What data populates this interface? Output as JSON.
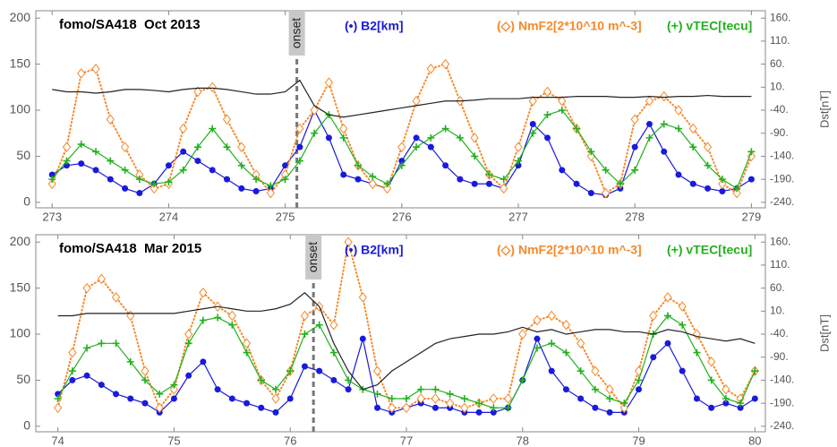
{
  "chart_data": [
    {
      "type": "line",
      "title": "fomo/SA418  Oct 2013",
      "xlim": [
        272.86,
        279.12
      ],
      "xticks": [
        273,
        274,
        275,
        276,
        277,
        278,
        279
      ],
      "ylim": [
        -6,
        208
      ],
      "yticks": [
        0,
        50,
        100,
        150,
        200
      ],
      "y2lim": [
        -252,
        176
      ],
      "y2ticks": [
        {
          "value": 160,
          "label": "160."
        },
        {
          "value": 110,
          "label": "110."
        },
        {
          "value": 60,
          "label": "60."
        },
        {
          "value": 10,
          "label": "10."
        },
        {
          "value": -40,
          "label": "-40."
        },
        {
          "value": -90,
          "label": "-90."
        },
        {
          "value": -140,
          "label": "-140."
        },
        {
          "value": -190,
          "label": "-190."
        },
        {
          "value": -240,
          "label": "-240."
        }
      ],
      "y2label": "Dst[nT]",
      "annotations": [
        {
          "text": "onset",
          "x": 275.1
        }
      ],
      "x": [
        273,
        273.125,
        273.25,
        273.375,
        273.5,
        273.625,
        273.75,
        273.875,
        274,
        274.125,
        274.25,
        274.375,
        274.5,
        274.625,
        274.75,
        274.875,
        275,
        275.125,
        275.25,
        275.375,
        275.5,
        275.625,
        275.75,
        275.875,
        276,
        276.125,
        276.25,
        276.375,
        276.5,
        276.625,
        276.75,
        276.875,
        277,
        277.125,
        277.25,
        277.375,
        277.5,
        277.625,
        277.75,
        277.875,
        278,
        278.125,
        278.25,
        278.375,
        278.5,
        278.625,
        278.75,
        278.875,
        279
      ],
      "series": [
        {
          "name": "(•) B2[km]",
          "color": "#1a1adb",
          "marker": "circle",
          "values": [
            30,
            40,
            42,
            35,
            25,
            15,
            10,
            20,
            40,
            55,
            45,
            35,
            25,
            15,
            12,
            15,
            40,
            60,
            100,
            70,
            30,
            25,
            20,
            15,
            45,
            70,
            60,
            40,
            25,
            20,
            20,
            15,
            40,
            85,
            70,
            35,
            20,
            10,
            8,
            15,
            60,
            85,
            55,
            30,
            20,
            15,
            12,
            15,
            25
          ]
        },
        {
          "name": "(◇) NmF2[2*10^10 m^-3]",
          "color": "#f5892a",
          "marker": "diamond",
          "values": [
            20,
            60,
            140,
            145,
            90,
            60,
            30,
            15,
            20,
            80,
            120,
            125,
            90,
            60,
            30,
            10,
            30,
            80,
            100,
            130,
            80,
            40,
            20,
            15,
            60,
            110,
            145,
            150,
            110,
            70,
            30,
            15,
            60,
            110,
            120,
            110,
            80,
            50,
            10,
            20,
            90,
            110,
            115,
            100,
            80,
            60,
            20,
            10,
            50
          ]
        },
        {
          "name": "(+) vTEC[tecu]",
          "color": "#22b01f",
          "marker": "plus",
          "values": [
            25,
            45,
            63,
            55,
            45,
            35,
            25,
            20,
            22,
            35,
            60,
            80,
            60,
            40,
            25,
            18,
            25,
            45,
            75,
            95,
            70,
            40,
            28,
            20,
            40,
            60,
            70,
            80,
            70,
            50,
            30,
            25,
            45,
            75,
            95,
            100,
            80,
            55,
            35,
            20,
            35,
            70,
            85,
            80,
            60,
            40,
            25,
            15,
            55
          ]
        },
        {
          "color": "#222222",
          "axis": "y2",
          "values": [
            5,
            0,
            0,
            -3,
            0,
            5,
            5,
            3,
            0,
            5,
            8,
            8,
            5,
            0,
            -5,
            -5,
            0,
            25,
            -30,
            -50,
            -55,
            -50,
            -45,
            -40,
            -35,
            -30,
            -25,
            -20,
            -20,
            -18,
            -15,
            -15,
            -15,
            -12,
            -12,
            -12,
            -10,
            -10,
            -10,
            -12,
            -12,
            -10,
            -12,
            -10,
            -10,
            -8,
            -10,
            -10,
            -10
          ]
        }
      ]
    },
    {
      "type": "line",
      "title": "fomo/SA418  Mar 2015",
      "xlim": [
        73.81,
        80.09
      ],
      "xticks": [
        74,
        75,
        76,
        77,
        78,
        79,
        80
      ],
      "ylim": [
        -6,
        208
      ],
      "yticks": [
        0,
        50,
        100,
        150,
        200
      ],
      "y2lim": [
        -252,
        176
      ],
      "y2ticks": [
        {
          "value": 160,
          "label": "160."
        },
        {
          "value": 110,
          "label": "110."
        },
        {
          "value": 60,
          "label": "60."
        },
        {
          "value": 10,
          "label": "10."
        },
        {
          "value": -40,
          "label": "-40."
        },
        {
          "value": -90,
          "label": "-90."
        },
        {
          "value": -140,
          "label": "-140."
        },
        {
          "value": -190,
          "label": "-190."
        },
        {
          "value": -240,
          "label": "-240."
        }
      ],
      "y2label": "Dst[nT]",
      "annotations": [
        {
          "text": "onset",
          "x": 76.2
        }
      ],
      "x": [
        74,
        74.125,
        74.25,
        74.375,
        74.5,
        74.625,
        74.75,
        74.875,
        75,
        75.125,
        75.25,
        75.375,
        75.5,
        75.625,
        75.75,
        75.875,
        76,
        76.125,
        76.25,
        76.375,
        76.5,
        76.625,
        76.75,
        76.875,
        77,
        77.125,
        77.25,
        77.375,
        77.5,
        77.625,
        77.75,
        77.875,
        78,
        78.125,
        78.25,
        78.375,
        78.5,
        78.625,
        78.75,
        78.875,
        79,
        79.125,
        79.25,
        79.375,
        79.5,
        79.625,
        79.75,
        79.875,
        80
      ],
      "series": [
        {
          "name": "(•) B2[km]",
          "color": "#1a1adb",
          "marker": "circle",
          "values": [
            35,
            50,
            55,
            45,
            35,
            30,
            25,
            15,
            30,
            55,
            70,
            40,
            30,
            25,
            20,
            15,
            30,
            65,
            60,
            50,
            40,
            95,
            20,
            15,
            20,
            25,
            20,
            20,
            15,
            15,
            15,
            20,
            50,
            95,
            60,
            40,
            30,
            20,
            15,
            15,
            40,
            75,
            90,
            60,
            30,
            20,
            25,
            20,
            30
          ]
        },
        {
          "name": "(◇) NmF2[2*10^10 m^-3]",
          "color": "#f5892a",
          "marker": "diamond",
          "values": [
            20,
            80,
            150,
            160,
            140,
            120,
            60,
            20,
            40,
            100,
            145,
            130,
            120,
            90,
            50,
            30,
            60,
            120,
            130,
            110,
            200,
            140,
            60,
            20,
            20,
            30,
            30,
            25,
            20,
            25,
            30,
            30,
            100,
            115,
            120,
            110,
            90,
            60,
            40,
            20,
            60,
            120,
            140,
            130,
            100,
            70,
            40,
            30,
            60
          ]
        },
        {
          "name": "(+) vTEC[tecu]",
          "color": "#22b01f",
          "marker": "plus",
          "values": [
            30,
            60,
            85,
            90,
            90,
            70,
            50,
            35,
            45,
            90,
            115,
            118,
            110,
            80,
            50,
            40,
            60,
            100,
            110,
            80,
            50,
            40,
            35,
            30,
            30,
            40,
            40,
            35,
            30,
            25,
            20,
            20,
            50,
            85,
            90,
            80,
            60,
            40,
            30,
            25,
            50,
            100,
            120,
            110,
            80,
            50,
            30,
            25,
            60
          ]
        },
        {
          "color": "#222222",
          "axis": "y2",
          "values": [
            0,
            0,
            5,
            5,
            5,
            5,
            5,
            5,
            5,
            10,
            15,
            20,
            15,
            10,
            10,
            15,
            25,
            50,
            20,
            -60,
            -120,
            -160,
            -150,
            -120,
            -100,
            -80,
            -60,
            -50,
            -45,
            -40,
            -40,
            -35,
            -25,
            -35,
            -30,
            -40,
            -35,
            -30,
            -30,
            -35,
            -35,
            -40,
            -30,
            -35,
            -45,
            -50,
            -55,
            -50,
            -60
          ]
        }
      ]
    }
  ]
}
